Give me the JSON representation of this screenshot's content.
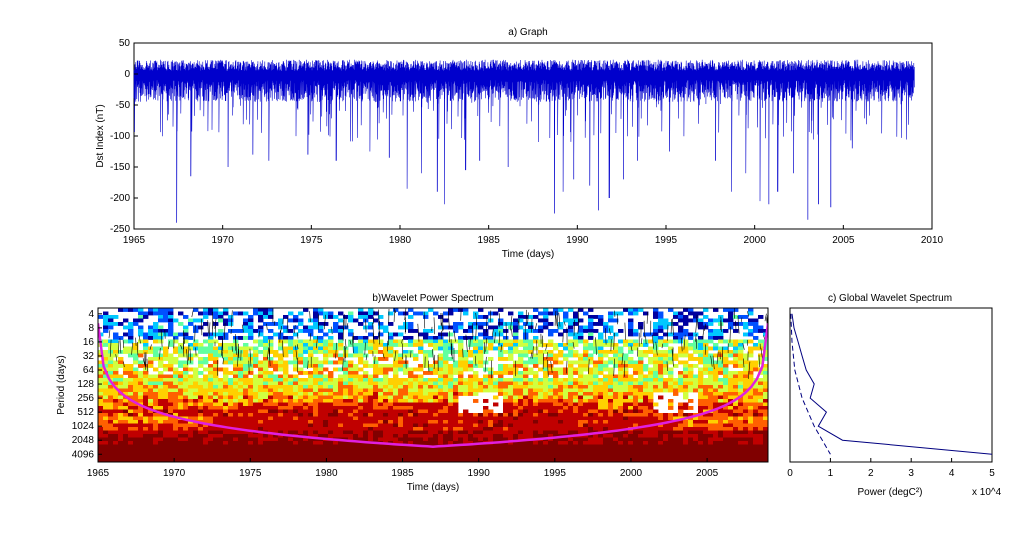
{
  "chart_data": [
    {
      "type": "line",
      "title": "a) Graph",
      "xlabel": "Time (days)",
      "ylabel": "Dst Index (nT)",
      "xlim": [
        1965,
        2010
      ],
      "ylim": [
        -250,
        50
      ],
      "x_ticks": [
        "1965",
        "1970",
        "1975",
        "1980",
        "1985",
        "1990",
        "1995",
        "2000",
        "2005",
        "2010"
      ],
      "y_ticks": [
        "50",
        "0",
        "-50",
        "-100",
        "-150",
        "-200",
        "-250"
      ],
      "series_color": "#0000cc",
      "storm_events": [
        {
          "x": 1967.4,
          "y": -240
        },
        {
          "x": 1968.2,
          "y": -165
        },
        {
          "x": 1970.3,
          "y": -150
        },
        {
          "x": 1971.7,
          "y": -130
        },
        {
          "x": 1972.6,
          "y": -140
        },
        {
          "x": 1974.8,
          "y": -130
        },
        {
          "x": 1976.4,
          "y": -140
        },
        {
          "x": 1978.3,
          "y": -125
        },
        {
          "x": 1979.4,
          "y": -135
        },
        {
          "x": 1980.4,
          "y": -185
        },
        {
          "x": 1981.2,
          "y": -160
        },
        {
          "x": 1982.1,
          "y": -190
        },
        {
          "x": 1982.5,
          "y": -210
        },
        {
          "x": 1983.7,
          "y": -155
        },
        {
          "x": 1984.5,
          "y": -140
        },
        {
          "x": 1986.1,
          "y": -150
        },
        {
          "x": 1988.7,
          "y": -225
        },
        {
          "x": 1989.2,
          "y": -190
        },
        {
          "x": 1989.8,
          "y": -170
        },
        {
          "x": 1990.7,
          "y": -180
        },
        {
          "x": 1991.2,
          "y": -220
        },
        {
          "x": 1991.8,
          "y": -200
        },
        {
          "x": 1992.6,
          "y": -170
        },
        {
          "x": 1993.4,
          "y": -140
        },
        {
          "x": 1995.2,
          "y": -125
        },
        {
          "x": 1997.8,
          "y": -140
        },
        {
          "x": 1998.7,
          "y": -190
        },
        {
          "x": 1999.5,
          "y": -160
        },
        {
          "x": 2000.3,
          "y": -205
        },
        {
          "x": 2000.8,
          "y": -210
        },
        {
          "x": 2001.3,
          "y": -190
        },
        {
          "x": 2002.2,
          "y": -160
        },
        {
          "x": 2003.0,
          "y": -235
        },
        {
          "x": 2003.6,
          "y": -210
        },
        {
          "x": 2004.3,
          "y": -215
        },
        {
          "x": 2005.5,
          "y": -120
        }
      ]
    },
    {
      "type": "heatmap",
      "title": "b)Wavelet Power Spectrum",
      "xlabel": "Time (days)",
      "ylabel": "Period (days)",
      "xlim": [
        1965,
        2009
      ],
      "y_scale": "log2",
      "x_ticks": [
        "1965",
        "1970",
        "1975",
        "1980",
        "1985",
        "1990",
        "1995",
        "2000",
        "2005"
      ],
      "y_ticks": [
        "4",
        "8",
        "16",
        "32",
        "64",
        "128",
        "256",
        "512",
        "1024",
        "2048",
        "4096"
      ],
      "colormap": [
        "#0000a0",
        "#0050ff",
        "#00c8ff",
        "#60ffa0",
        "#d0ff40",
        "#ffd000",
        "#ff6000",
        "#c00000",
        "#800000"
      ],
      "cone_of_influence_color": "#e020e0",
      "high_power_bands": [
        {
          "period_days": 4096,
          "x_from": 1965,
          "x_to": 2009,
          "level": 0.9
        },
        {
          "period_days": 2048,
          "x_from": 1965,
          "x_to": 2009,
          "level": 0.8
        },
        {
          "period_days": 1024,
          "x_from": 1972,
          "x_to": 2003,
          "level": 0.75
        },
        {
          "period_days": 512,
          "x_from": 1975,
          "x_to": 1998,
          "level": 0.7
        }
      ]
    },
    {
      "type": "line",
      "title": "c) Global Wavelet Spectrum",
      "xlabel": "Power (degC²)",
      "x_multiplier": "x 10^4",
      "xlim": [
        0,
        5
      ],
      "x_ticks": [
        "0",
        "1",
        "2",
        "3",
        "4",
        "5"
      ],
      "series": [
        {
          "name": "",
          "style": "solid",
          "points": [
            {
              "power": 0.05,
              "period_days": 4
            },
            {
              "power": 0.1,
              "period_days": 8
            },
            {
              "power": 0.2,
              "period_days": 16
            },
            {
              "power": 0.3,
              "period_days": 32
            },
            {
              "power": 0.4,
              "period_days": 64
            },
            {
              "power": 0.6,
              "period_days": 128
            },
            {
              "power": 0.5,
              "period_days": 256
            },
            {
              "power": 0.9,
              "period_days": 512
            },
            {
              "power": 0.7,
              "period_days": 1024
            },
            {
              "power": 1.3,
              "period_days": 2048
            },
            {
              "power": 5.0,
              "period_days": 4096
            }
          ]
        },
        {
          "name": "",
          "style": "dashed",
          "points": [
            {
              "power": 0.02,
              "period_days": 4
            },
            {
              "power": 0.05,
              "period_days": 16
            },
            {
              "power": 0.12,
              "period_days": 64
            },
            {
              "power": 0.3,
              "period_days": 256
            },
            {
              "power": 0.6,
              "period_days": 1024
            },
            {
              "power": 1.0,
              "period_days": 4096
            }
          ]
        }
      ]
    }
  ]
}
